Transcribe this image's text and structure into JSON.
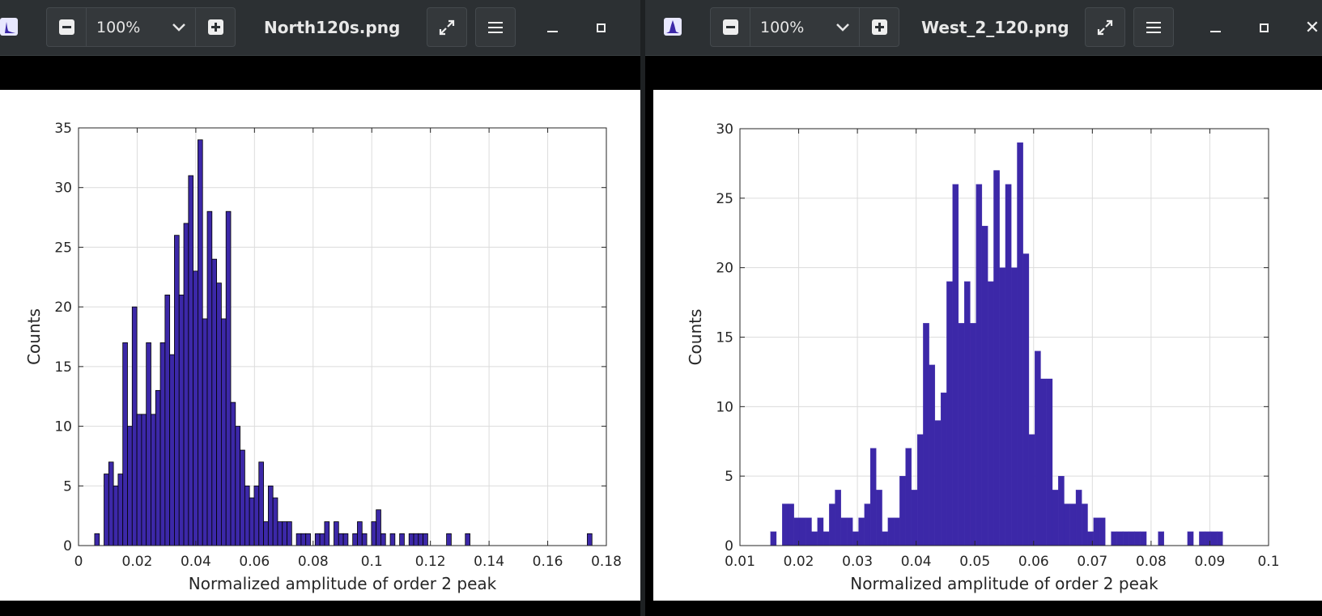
{
  "windows": [
    {
      "id": "left",
      "title": "North120s.png",
      "zoom": "100%",
      "chart_data": {
        "type": "bar",
        "title": "",
        "xlabel": "Normalized amplitude of order 2 peak",
        "ylabel": "Counts",
        "xlim": [
          0,
          0.18
        ],
        "ylim": [
          0,
          35
        ],
        "xticks": [
          0,
          0.02,
          0.04,
          0.06,
          0.08,
          0.1,
          0.12,
          0.14,
          0.16,
          0.18
        ],
        "xtick_labels": [
          "0",
          "0.02",
          "0.04",
          "0.06",
          "0.08",
          "0.1",
          "0.12",
          "0.14",
          "0.16",
          "0.18"
        ],
        "yticks": [
          0,
          5,
          10,
          15,
          20,
          25,
          30,
          35
        ],
        "ytick_labels": [
          "0",
          "5",
          "10",
          "15",
          "20",
          "25",
          "30",
          "35"
        ],
        "grid": true,
        "bin_start": 0.0055,
        "bin_width": 0.0016,
        "values": [
          1,
          0,
          6,
          7,
          5,
          6,
          17,
          10,
          20,
          11,
          11,
          17,
          11,
          13,
          17,
          21,
          16,
          26,
          21,
          27,
          31,
          23,
          34,
          19,
          28,
          24,
          22,
          19,
          28,
          12,
          10,
          8,
          5,
          4,
          5,
          7,
          2,
          5,
          4,
          2,
          2,
          2,
          0,
          1,
          1,
          1,
          0,
          1,
          1,
          2,
          0,
          2,
          1,
          1,
          0,
          1,
          2,
          1,
          0,
          2,
          3,
          1,
          0,
          1,
          0,
          1,
          0,
          1,
          1,
          1,
          1,
          0,
          0,
          0,
          0,
          1,
          0,
          0,
          0,
          1,
          0,
          0,
          0,
          0,
          0,
          0,
          0,
          0,
          0,
          0,
          0,
          0,
          0,
          0,
          0,
          0,
          0,
          0,
          0,
          0,
          0,
          0,
          0,
          0,
          0,
          1
        ],
        "bar_color": "#3c28a8",
        "edge_color": "#000000",
        "series": []
      }
    },
    {
      "id": "right",
      "title": "West_2_120.png",
      "zoom": "100%",
      "chart_data": {
        "type": "bar",
        "title": "",
        "xlabel": "Normalized amplitude of order 2 peak",
        "ylabel": "Counts",
        "xlim": [
          0.01,
          0.1
        ],
        "ylim": [
          0,
          30
        ],
        "xticks": [
          0.01,
          0.02,
          0.03,
          0.04,
          0.05,
          0.06,
          0.07,
          0.08,
          0.09,
          0.1
        ],
        "xtick_labels": [
          "0.01",
          "0.02",
          "0.03",
          "0.04",
          "0.05",
          "0.06",
          "0.07",
          "0.08",
          "0.09",
          "0.1"
        ],
        "yticks": [
          0,
          5,
          10,
          15,
          20,
          25,
          30
        ],
        "ytick_labels": [
          "0",
          "5",
          "10",
          "15",
          "20",
          "25",
          "30"
        ],
        "grid": true,
        "bin_start": 0.0152,
        "bin_width": 0.001,
        "values": [
          1,
          0,
          3,
          3,
          2,
          2,
          2,
          1,
          2,
          1,
          3,
          4,
          2,
          2,
          1,
          2,
          3,
          7,
          4,
          1,
          2,
          2,
          5,
          7,
          4,
          8,
          16,
          13,
          9,
          11,
          19,
          26,
          16,
          19,
          16,
          26,
          23,
          19,
          27,
          20,
          26,
          20,
          29,
          21,
          8,
          14,
          12,
          12,
          4,
          5,
          3,
          3,
          4,
          3,
          1,
          2,
          2,
          0,
          1,
          1,
          1,
          1,
          1,
          1,
          0,
          0,
          1,
          0,
          0,
          0,
          0,
          1,
          0,
          1,
          1,
          1,
          1
        ],
        "bar_color": "#3c28a8",
        "edge_color": "#3c28a8",
        "series": []
      }
    }
  ]
}
